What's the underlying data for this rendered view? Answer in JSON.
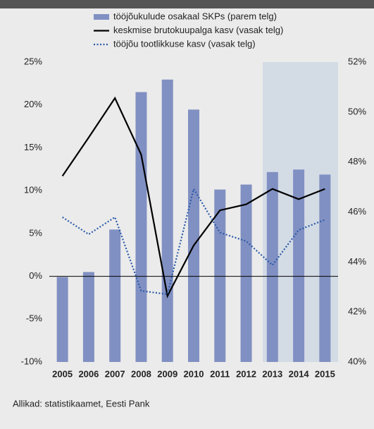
{
  "chart_data": {
    "type": "bar-line",
    "categories": [
      "2005",
      "2006",
      "2007",
      "2008",
      "2009",
      "2010",
      "2011",
      "2012",
      "2013",
      "2014",
      "2015"
    ],
    "series": [
      {
        "name": "tööjõukulude osakaal SKPs (parem telg)",
        "type": "bar",
        "axis": "y2",
        "color": "#8190c2",
        "values": [
          43.4,
          43.6,
          45.3,
          50.8,
          51.3,
          50.1,
          46.9,
          47.1,
          47.6,
          47.7,
          47.5
        ]
      },
      {
        "name": "keskmise brutokuupalga kasv (vasak telg)",
        "type": "line",
        "color": "#000000",
        "values": [
          11.7,
          16.2,
          20.8,
          14.2,
          -2.3,
          3.6,
          7.7,
          8.4,
          10.2,
          9.0,
          10.2
        ]
      },
      {
        "name": "tööjõu tootlikkuse kasv (vasak telg)",
        "type": "dotted",
        "color": "#2a5aa8",
        "values": [
          6.9,
          4.9,
          6.9,
          -1.7,
          -2.1,
          10.2,
          5.1,
          4.1,
          1.3,
          5.4,
          6.6
        ]
      }
    ],
    "ylim": [
      -10,
      25
    ],
    "yticks": [
      {
        "value": -10,
        "label": "-10%"
      },
      {
        "value": -5,
        "label": "-5%"
      },
      {
        "value": 0,
        "label": "0%"
      },
      {
        "value": 5,
        "label": "5%"
      },
      {
        "value": 10,
        "label": "10%"
      },
      {
        "value": 15,
        "label": "15%"
      },
      {
        "value": 20,
        "label": "20%"
      },
      {
        "value": 25,
        "label": "25%"
      }
    ],
    "y2lim": [
      40,
      52
    ],
    "y2ticks": [
      {
        "value": 40,
        "label": "40%"
      },
      {
        "value": 42,
        "label": "42%"
      },
      {
        "value": 44,
        "label": "44%"
      },
      {
        "value": 46,
        "label": "46%"
      },
      {
        "value": 48,
        "label": "48%"
      },
      {
        "value": 50,
        "label": "50%"
      },
      {
        "value": 52,
        "label": "52%"
      }
    ],
    "source": "Allikad: statistikaamet, Eesti Pank"
  }
}
